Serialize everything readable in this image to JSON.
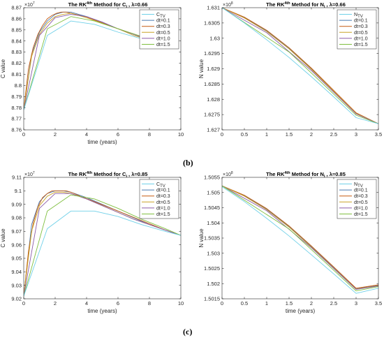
{
  "figure": {
    "panel_labels": [
      "(b)",
      "(c)"
    ],
    "colors": {
      "C_TV": "#9ecae1",
      "dt=0.1": "#4a7ab0",
      "dt=0.3": "#c55a11",
      "dt=0.5": "#c9a227",
      "dt=1.0": "#8a5ba8",
      "dt=1.5": "#7fbf3f",
      "alt_tv": "#6fd0e8"
    }
  },
  "chart_data": [
    {
      "type": "line",
      "title": "The RK^4th Method for C_i , λ=0.66",
      "title_parts": {
        "pre": "The RK",
        "sup": "4th",
        "mid": " Method for C",
        "sub": "i",
        "post": " ,  λ=0.66"
      },
      "xlabel": "time (years)",
      "ylabel": "C value",
      "exponent_label": "×10^7",
      "exponent_parts": {
        "base": "×10",
        "sup": "7"
      },
      "xlim": [
        0,
        10
      ],
      "ylim": [
        8.76,
        8.87
      ],
      "xticks": [
        0,
        2,
        4,
        6,
        8,
        10
      ],
      "yticks": [
        8.76,
        8.77,
        8.78,
        8.79,
        8.8,
        8.81,
        8.82,
        8.83,
        8.84,
        8.85,
        8.86,
        8.87
      ],
      "ytick_labels": [
        "8.76",
        "8.77",
        "8.78",
        "8.79",
        "8.8",
        "8.81",
        "8.82",
        "8.83",
        "8.84",
        "8.85",
        "8.86",
        "8.87"
      ],
      "legend": [
        "C_TV",
        "dt=0.1",
        "dt=0.3",
        "dt=0.5",
        "dt=1.0",
        "dt=1.5"
      ],
      "legend_position": "top-right",
      "series": [
        {
          "name": "C_TV",
          "color": "#6fd0e8",
          "x": [
            0,
            1.5,
            3,
            4.5,
            6,
            7.5,
            8.5
          ],
          "y": [
            8.778,
            8.845,
            8.858,
            8.855,
            8.848,
            8.842,
            8.838
          ]
        },
        {
          "name": "dt=0.1",
          "color": "#4a7ab0",
          "x": [
            0,
            0.5,
            1,
            1.5,
            2,
            2.5,
            3,
            3.5,
            4,
            5,
            6,
            7,
            8,
            8.5
          ],
          "y": [
            8.778,
            8.828,
            8.848,
            8.858,
            8.864,
            8.866,
            8.866,
            8.864,
            8.862,
            8.857,
            8.851,
            8.846,
            8.841,
            8.839
          ]
        },
        {
          "name": "dt=0.3",
          "color": "#c55a11",
          "x": [
            0,
            0.3,
            0.6,
            0.9,
            1.2,
            1.5,
            1.8,
            2.1,
            2.4,
            2.7,
            3,
            3.6,
            4.5,
            6,
            7.5,
            8.5
          ],
          "y": [
            8.778,
            8.815,
            8.834,
            8.846,
            8.854,
            8.86,
            8.863,
            8.865,
            8.866,
            8.866,
            8.865,
            8.863,
            8.859,
            8.851,
            8.844,
            8.839
          ]
        },
        {
          "name": "dt=0.5",
          "color": "#c9a227",
          "x": [
            0,
            0.5,
            1,
            1.5,
            2,
            2.5,
            3,
            3.5,
            4,
            5,
            6,
            7,
            8,
            8.5
          ],
          "y": [
            8.778,
            8.826,
            8.846,
            8.856,
            8.862,
            8.864,
            8.865,
            8.863,
            8.861,
            8.856,
            8.851,
            8.845,
            8.841,
            8.839
          ]
        },
        {
          "name": "dt=1.0",
          "color": "#8a5ba8",
          "x": [
            0,
            1,
            2,
            3,
            4,
            5,
            6,
            7,
            8,
            8.5
          ],
          "y": [
            8.778,
            8.845,
            8.861,
            8.864,
            8.862,
            8.857,
            8.851,
            8.846,
            8.841,
            8.839
          ]
        },
        {
          "name": "dt=1.5",
          "color": "#7fbf3f",
          "x": [
            0,
            1.5,
            3,
            4.5,
            6,
            7.5,
            8.5
          ],
          "y": [
            8.778,
            8.851,
            8.862,
            8.858,
            8.851,
            8.844,
            8.839
          ]
        }
      ]
    },
    {
      "type": "line",
      "title": "The RK^4th Method for N_i , λ=0.66",
      "title_parts": {
        "pre": "The RK",
        "sup": "4th",
        "mid": " Method for N",
        "sub": "i",
        "post": " ,  λ=0.66"
      },
      "xlabel": "",
      "ylabel": "N value",
      "exponent_label": "×10^8",
      "exponent_parts": {
        "base": "×10",
        "sup": "8"
      },
      "xlim": [
        0,
        3.5
      ],
      "ylim": [
        1.627,
        1.631
      ],
      "xticks": [
        0,
        0.5,
        1,
        1.5,
        2,
        2.5,
        3,
        3.5
      ],
      "yticks": [
        1.627,
        1.6275,
        1.628,
        1.6285,
        1.629,
        1.6295,
        1.63,
        1.6305,
        1.631
      ],
      "ytick_labels": [
        "1.627",
        "1.6275",
        "1.628",
        "1.6285",
        "1.629",
        "1.6295",
        "1.63",
        "1.6305",
        "1.631"
      ],
      "legend": [
        "N_TV",
        "dt=0.1",
        "dt=0.3",
        "dt=0.5",
        "dt=1.0",
        "dt=1.5"
      ],
      "legend_position": "top-right",
      "series": [
        {
          "name": "N_TV",
          "color": "#6fd0e8",
          "x": [
            0,
            0.5,
            1,
            1.5,
            2,
            2.5,
            3,
            3.5
          ],
          "y": [
            1.631,
            1.6305,
            1.62995,
            1.62937,
            1.62874,
            1.62808,
            1.6274,
            1.6272
          ]
        },
        {
          "name": "dt=0.1",
          "color": "#4a7ab0",
          "x": [
            0,
            0.5,
            1,
            1.5,
            2,
            2.5,
            3,
            3.5
          ],
          "y": [
            1.631,
            1.63068,
            1.63024,
            1.62967,
            1.629,
            1.62827,
            1.62755,
            1.6272
          ]
        },
        {
          "name": "dt=0.3",
          "color": "#c55a11",
          "x": [
            0,
            0.5,
            1,
            1.5,
            2,
            2.5,
            3,
            3.5
          ],
          "y": [
            1.631,
            1.63069,
            1.63026,
            1.62969,
            1.62902,
            1.62829,
            1.62756,
            1.6272
          ]
        },
        {
          "name": "dt=0.5",
          "color": "#c9a227",
          "x": [
            0,
            0.5,
            1,
            1.5,
            2,
            2.5,
            3,
            3.5
          ],
          "y": [
            1.631,
            1.63066,
            1.63022,
            1.62965,
            1.62898,
            1.62826,
            1.62754,
            1.6272
          ]
        },
        {
          "name": "dt=1.0",
          "color": "#8a5ba8",
          "x": [
            0,
            1,
            2,
            3,
            3.5
          ],
          "y": [
            1.631,
            1.63018,
            1.62894,
            1.62752,
            1.6272
          ]
        },
        {
          "name": "dt=1.5",
          "color": "#7fbf3f",
          "x": [
            0,
            1.5,
            3,
            3.5
          ],
          "y": [
            1.631,
            1.62955,
            1.62748,
            1.6272
          ]
        }
      ]
    },
    {
      "type": "line",
      "title": "The RK^4th Method for C_i , λ=0.85",
      "title_parts": {
        "pre": "The RK",
        "sup": "4th",
        "mid": " Method for C",
        "sub": "i",
        "post": " ,  λ=0.85"
      },
      "xlabel": "time (years)",
      "ylabel": "C value",
      "exponent_label": "×10^7",
      "exponent_parts": {
        "base": "×10",
        "sup": "7"
      },
      "xlim": [
        0,
        10
      ],
      "ylim": [
        9.02,
        9.11
      ],
      "xticks": [
        0,
        2,
        4,
        6,
        8,
        10
      ],
      "yticks": [
        9.02,
        9.03,
        9.04,
        9.05,
        9.06,
        9.07,
        9.08,
        9.09,
        9.1,
        9.11
      ],
      "ytick_labels": [
        "9.02",
        "9.03",
        "9.04",
        "9.05",
        "9.06",
        "9.07",
        "9.08",
        "9.09",
        "9.1",
        "9.11"
      ],
      "legend": [
        "C_TV",
        "dt=0.1",
        "dt=0.3",
        "dt=0.5",
        "dt=1.0",
        "dt=1.5"
      ],
      "legend_position": "top-right",
      "series": [
        {
          "name": "C_TV",
          "color": "#6fd0e8",
          "x": [
            0,
            1.5,
            3,
            4.5,
            6,
            7.5,
            9,
            10
          ],
          "y": [
            9.022,
            9.072,
            9.085,
            9.085,
            9.081,
            9.075,
            9.07,
            9.067
          ]
        },
        {
          "name": "dt=0.1",
          "color": "#4a7ab0",
          "x": [
            0,
            0.5,
            1,
            1.5,
            2,
            2.5,
            3,
            4,
            5,
            6,
            7,
            8,
            9,
            10
          ],
          "y": [
            9.022,
            9.075,
            9.092,
            9.098,
            9.1,
            9.1,
            9.099,
            9.095,
            9.09,
            9.085,
            9.08,
            9.075,
            9.071,
            9.067
          ]
        },
        {
          "name": "dt=0.3",
          "color": "#c55a11",
          "x": [
            0,
            0.3,
            0.6,
            0.9,
            1.2,
            1.5,
            1.8,
            2.1,
            2.4,
            2.7,
            3,
            3.6,
            4.5,
            6,
            7.5,
            9,
            10
          ],
          "y": [
            9.022,
            9.055,
            9.076,
            9.088,
            9.095,
            9.098,
            9.1,
            9.1,
            9.1,
            9.1,
            9.099,
            9.096,
            9.092,
            9.085,
            9.078,
            9.071,
            9.067
          ]
        },
        {
          "name": "dt=0.5",
          "color": "#c9a227",
          "x": [
            0,
            0.5,
            1,
            1.5,
            2,
            2.5,
            3,
            4,
            5,
            6,
            7,
            8,
            9,
            10
          ],
          "y": [
            9.022,
            9.07,
            9.089,
            9.096,
            9.099,
            9.099,
            9.098,
            9.094,
            9.089,
            9.084,
            9.079,
            9.075,
            9.071,
            9.067
          ]
        },
        {
          "name": "dt=1.0",
          "color": "#8a5ba8",
          "x": [
            0,
            1,
            2,
            3,
            4,
            5,
            6,
            7,
            8,
            9,
            10
          ],
          "y": [
            9.022,
            9.087,
            9.098,
            9.098,
            9.094,
            9.089,
            9.084,
            9.079,
            9.075,
            9.071,
            9.067
          ]
        },
        {
          "name": "dt=1.5",
          "color": "#7fbf3f",
          "x": [
            0,
            1.5,
            3,
            4.5,
            6,
            7.5,
            9,
            10
          ],
          "y": [
            9.022,
            9.085,
            9.097,
            9.094,
            9.087,
            9.079,
            9.072,
            9.067
          ]
        }
      ]
    },
    {
      "type": "line",
      "title": "The RK^4th Method for N_i , λ=0.85",
      "title_parts": {
        "pre": "The RK",
        "sup": "4th",
        "mid": " Method for N",
        "sub": "i",
        "post": " ,  λ=0.85"
      },
      "xlabel": "time (years)",
      "ylabel": "N value",
      "exponent_label": "×10^8",
      "exponent_parts": {
        "base": "×10",
        "sup": "8"
      },
      "xlim": [
        0,
        3.5
      ],
      "ylim": [
        1.5015,
        1.5055
      ],
      "xticks": [
        0,
        0.5,
        1,
        1.5,
        2,
        2.5,
        3,
        3.5
      ],
      "yticks": [
        1.5015,
        1.502,
        1.5025,
        1.503,
        1.5035,
        1.504,
        1.5045,
        1.505,
        1.5055
      ],
      "ytick_labels": [
        "1.5015",
        "1.502",
        "1.5025",
        "1.503",
        "1.5035",
        "1.504",
        "1.5045",
        "1.505",
        "1.5055"
      ],
      "legend": [
        "N_TV",
        "dt=0.1",
        "dt=0.3",
        "dt=0.5",
        "dt=1.0",
        "dt=1.5"
      ],
      "legend_position": "top-right",
      "series": [
        {
          "name": "N_TV",
          "color": "#6fd0e8",
          "x": [
            0,
            0.5,
            1,
            1.5,
            2,
            2.5,
            3,
            3.5
          ],
          "y": [
            1.50519,
            1.5047,
            1.50415,
            1.50357,
            1.50295,
            1.50232,
            1.50168,
            1.50185
          ]
        },
        {
          "name": "dt=0.1",
          "color": "#4a7ab0",
          "x": [
            0,
            0.5,
            1,
            1.5,
            2,
            2.5,
            3,
            3.5
          ],
          "y": [
            1.50522,
            1.5049,
            1.50445,
            1.50388,
            1.50322,
            1.50253,
            1.50183,
            1.50194
          ]
        },
        {
          "name": "dt=0.3",
          "color": "#c55a11",
          "x": [
            0,
            0.5,
            1,
            1.5,
            2,
            2.5,
            3,
            3.5
          ],
          "y": [
            1.50522,
            1.50491,
            1.50447,
            1.5039,
            1.50324,
            1.50255,
            1.50185,
            1.50196
          ]
        },
        {
          "name": "dt=0.5",
          "color": "#c9a227",
          "x": [
            0,
            0.5,
            1,
            1.5,
            2,
            2.5,
            3,
            3.5
          ],
          "y": [
            1.50522,
            1.50488,
            1.50443,
            1.50386,
            1.5032,
            1.50251,
            1.50182,
            1.50193
          ]
        },
        {
          "name": "dt=1.0",
          "color": "#8a5ba8",
          "x": [
            0,
            1,
            2,
            3,
            3.5
          ],
          "y": [
            1.50522,
            1.5044,
            1.50318,
            1.50181,
            1.50192
          ]
        },
        {
          "name": "dt=1.5",
          "color": "#7fbf3f",
          "x": [
            0,
            1.5,
            3,
            3.5
          ],
          "y": [
            1.50522,
            1.5038,
            1.50176,
            1.5019
          ]
        }
      ]
    }
  ]
}
